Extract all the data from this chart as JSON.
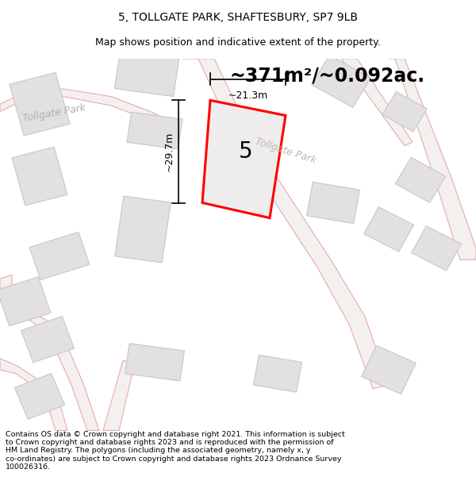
{
  "title": "5, TOLLGATE PARK, SHAFTESBURY, SP7 9LB",
  "subtitle": "Map shows position and indicative extent of the property.",
  "area_text": "~371m²/~0.092ac.",
  "number_label": "5",
  "dim_width": "~21.3m",
  "dim_height": "~29.7m",
  "road_label_1": "Tollgate Park",
  "road_label_2": "Tollgate Park",
  "footer": "Contains OS data © Crown copyright and database right 2021. This information is subject to Crown copyright and database rights 2023 and is reproduced with the permission of HM Land Registry. The polygons (including the associated geometry, namely x, y co-ordinates) are subject to Crown copyright and database rights 2023 Ordnance Survey 100026316.",
  "map_bg": "#f5f3f3",
  "road_outline_color": "#e8aaaa",
  "road_fill_color": "#f5f0f0",
  "building_fill": "#e2e0e0",
  "building_stroke": "#c8c8c8",
  "highlight_fill": "#eeecec",
  "highlight_stroke": "#ff0000",
  "title_fontsize": 10,
  "subtitle_fontsize": 9,
  "area_fontsize": 18,
  "footer_fontsize": 6.8
}
